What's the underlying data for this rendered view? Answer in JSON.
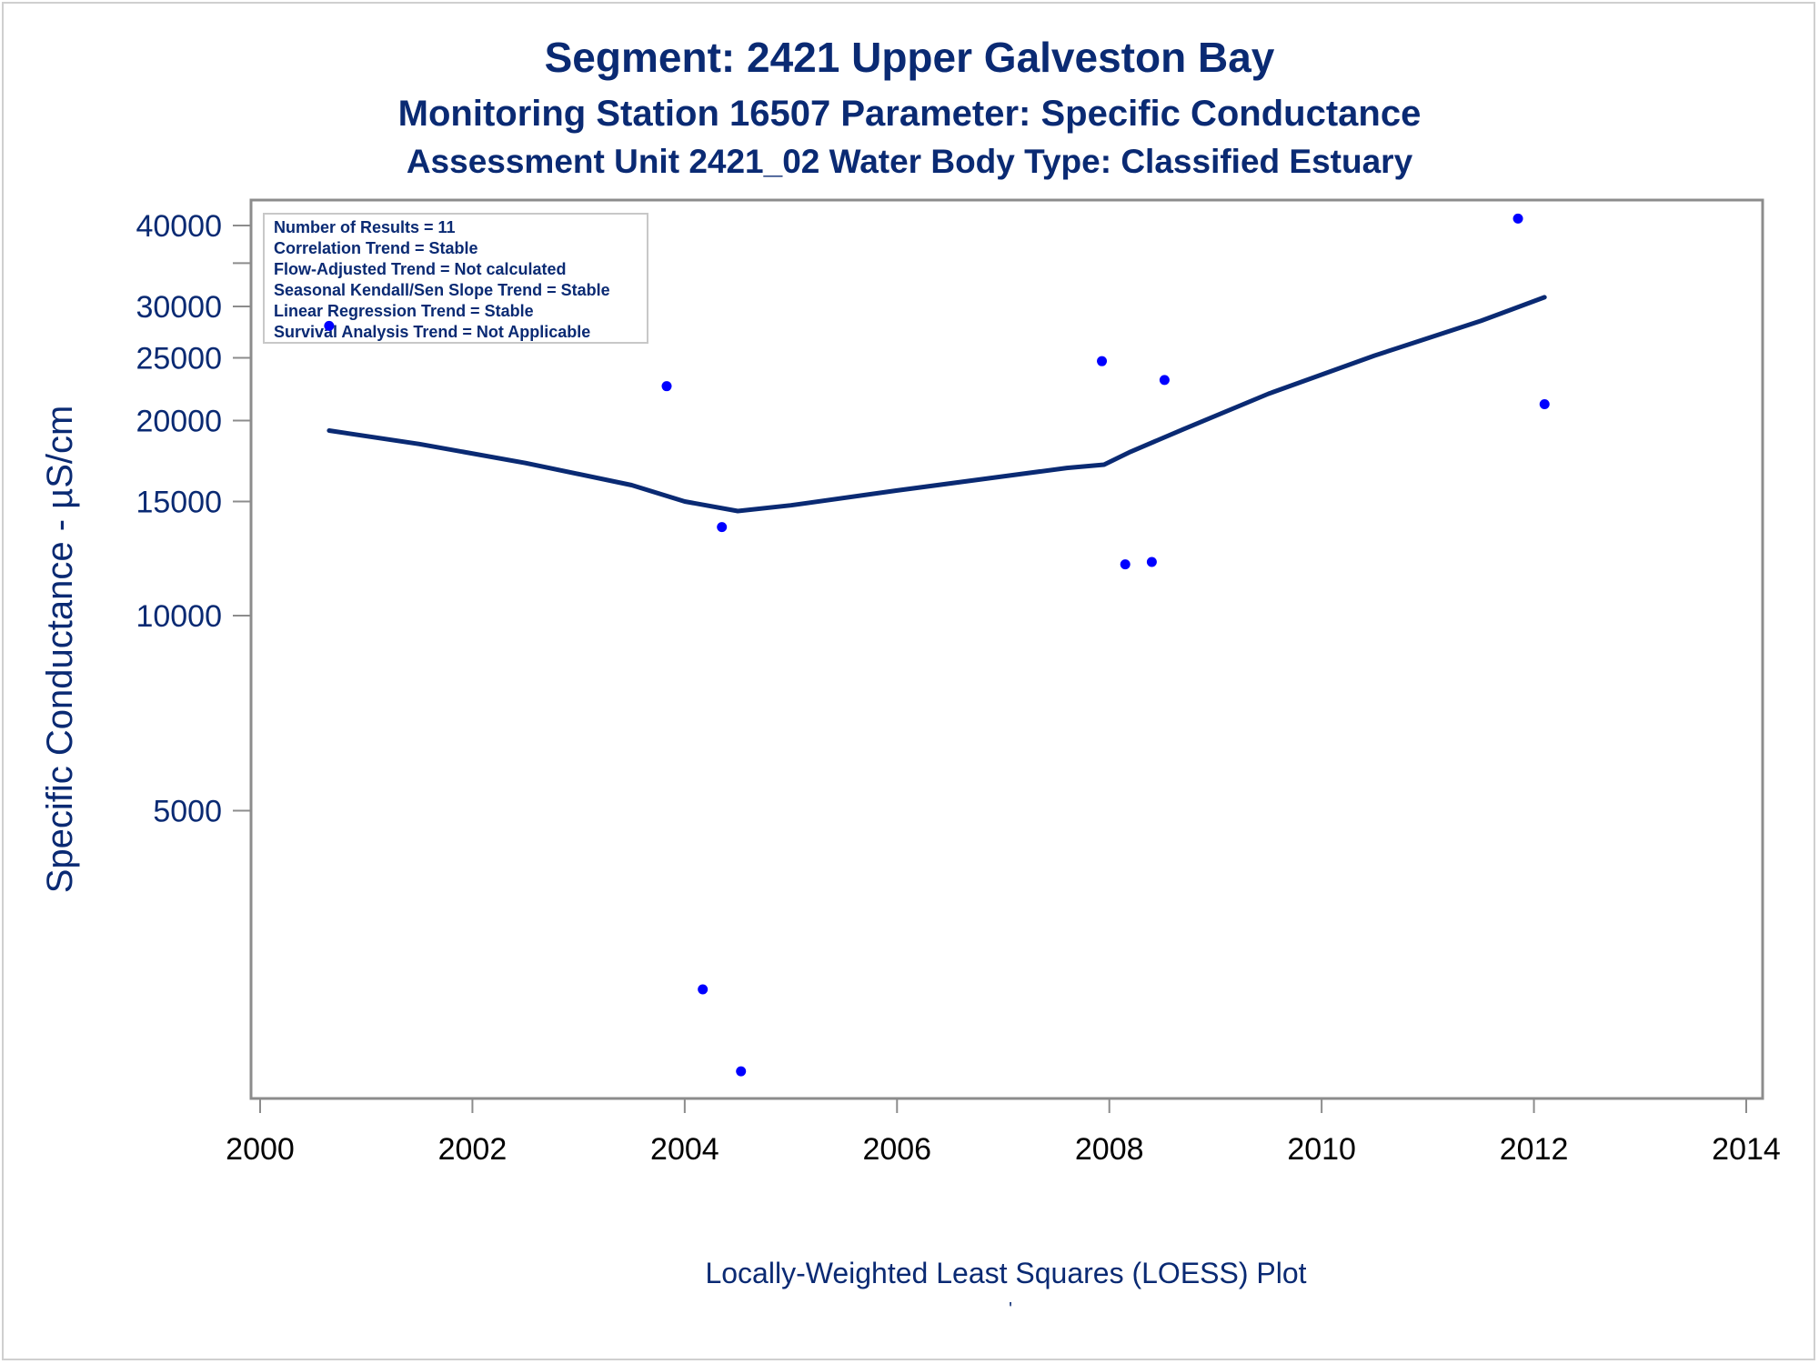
{
  "colors": {
    "text": "#0a2a73",
    "line": "#0a2a73",
    "points": "#0000ff",
    "frame": "#8c8c8c"
  },
  "chart_data": {
    "type": "scatter",
    "title": "Segment: 2421  Upper Galveston Bay",
    "subtitle": "Monitoring Station 16507 Parameter: Specific Conductance",
    "subtitle2": "Assessment Unit 2421_02   Water Body Type: Classified Estuary",
    "xlabel": "Locally-Weighted Least Squares (LOESS) Plot",
    "ylabel": "Specific Conductance -  µS/cm",
    "footnote_mark": "'",
    "xlim": [
      2000,
      2014
    ],
    "ylim": [
      1950,
      42000
    ],
    "yscale": "log",
    "x_ticks": [
      2000,
      2002,
      2004,
      2006,
      2008,
      2010,
      2012,
      2014
    ],
    "y_ticks": [
      5000,
      10000,
      15000,
      20000,
      25000,
      30000,
      40000
    ],
    "y_minor_ticks": [
      35000
    ],
    "grid": false,
    "info_box": [
      "Number of Results = 11",
      "Correlation Trend = Stable",
      "Flow-Adjusted Trend = Not calculated",
      "Seasonal Kendall/Sen Slope Trend = Stable",
      "Linear Regression Trend = Stable",
      "Survival Analysis Trend = Not Applicable"
    ],
    "points": [
      {
        "x": 2000.65,
        "y": 28000
      },
      {
        "x": 2003.83,
        "y": 22600
      },
      {
        "x": 2004.17,
        "y": 2650
      },
      {
        "x": 2004.35,
        "y": 13700
      },
      {
        "x": 2004.53,
        "y": 1980
      },
      {
        "x": 2007.93,
        "y": 24700
      },
      {
        "x": 2008.15,
        "y": 12000
      },
      {
        "x": 2008.4,
        "y": 12100
      },
      {
        "x": 2008.52,
        "y": 23100
      },
      {
        "x": 2011.85,
        "y": 41000
      },
      {
        "x": 2012.1,
        "y": 21200
      }
    ],
    "loess_line": [
      {
        "x": 2000.65,
        "y": 19300
      },
      {
        "x": 2001.5,
        "y": 18400
      },
      {
        "x": 2002.5,
        "y": 17200
      },
      {
        "x": 2003.5,
        "y": 15900
      },
      {
        "x": 2004.0,
        "y": 15000
      },
      {
        "x": 2004.5,
        "y": 14500
      },
      {
        "x": 2005.0,
        "y": 14800
      },
      {
        "x": 2006.0,
        "y": 15600
      },
      {
        "x": 2007.0,
        "y": 16400
      },
      {
        "x": 2007.6,
        "y": 16900
      },
      {
        "x": 2007.95,
        "y": 17100
      },
      {
        "x": 2008.2,
        "y": 17900
      },
      {
        "x": 2008.7,
        "y": 19400
      },
      {
        "x": 2009.5,
        "y": 22000
      },
      {
        "x": 2010.5,
        "y": 25200
      },
      {
        "x": 2011.5,
        "y": 28500
      },
      {
        "x": 2012.1,
        "y": 31000
      }
    ]
  }
}
